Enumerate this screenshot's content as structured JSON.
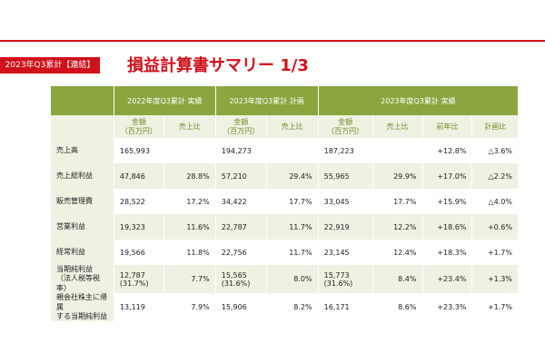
{
  "header": {
    "badge": "2023年Q3累計【連結】",
    "title": "損益計算書サマリー 1/3"
  },
  "table": {
    "groups": [
      "2022年度Q3累計 実績",
      "2023年度Q3累計 計画",
      "2023年度Q3累計 実績"
    ],
    "subheaders": [
      "金額\n（百万円）",
      "売上比",
      "金額\n（百万円）",
      "売上比",
      "金額\n（百万円）",
      "売上比",
      "前年比",
      "計画比"
    ],
    "rows": [
      {
        "label": "売上高",
        "cells": [
          "165,993",
          "",
          "194,273",
          "",
          "187,223",
          "",
          "+12.8%",
          "△3.6%"
        ]
      },
      {
        "label": "売上総利益",
        "cells": [
          "47,846",
          "28.8%",
          "57,210",
          "29.4%",
          "55,965",
          "29.9%",
          "+17.0%",
          "△2.2%"
        ]
      },
      {
        "label": "販売管理費",
        "cells": [
          "28,522",
          "17.2%",
          "34,422",
          "17.7%",
          "33,045",
          "17.7%",
          "+15.9%",
          "△4.0%"
        ]
      },
      {
        "label": "営業利益",
        "cells": [
          "19,323",
          "11.6%",
          "22,787",
          "11.7%",
          "22,919",
          "12.2%",
          "+18.6%",
          "+0.6%"
        ]
      },
      {
        "label": "経常利益",
        "cells": [
          "19,566",
          "11.8%",
          "22,756",
          "11.7%",
          "23,145",
          "12.4%",
          "+18.3%",
          "+1.7%"
        ]
      },
      {
        "label": "当期純利益\n（法人税等税率）",
        "cells": [
          "12,787\n(31.7%)",
          "7.7%",
          "15,565\n(31.6%)",
          "8.0%",
          "15,773\n(31.6%)",
          "8.4%",
          "+23.4%",
          "+1.3%"
        ]
      },
      {
        "label": "親会社株主に帰属\nする当期純利益",
        "cells": [
          "13,119",
          "7.9%",
          "15,906",
          "8.2%",
          "16,171",
          "8.6%",
          "+23.3%",
          "+1.7%"
        ]
      }
    ]
  }
}
